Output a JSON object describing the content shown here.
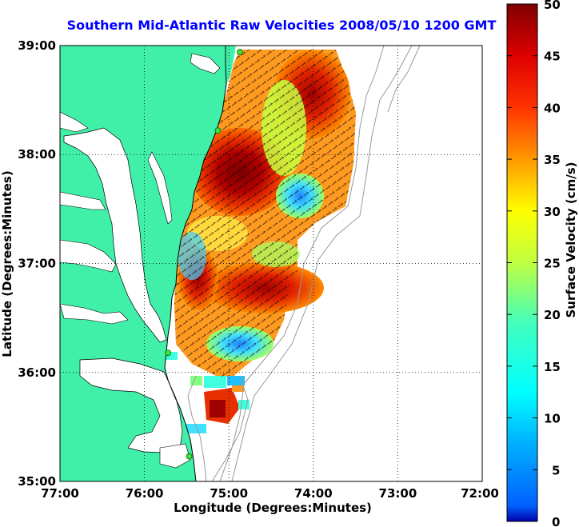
{
  "title": "Southern Mid-Atlantic Raw Velocities 2008/05/10 1200 GMT",
  "x_axis": {
    "label": "Longitude (Degrees:Minutes)",
    "ticks": [
      "77:00",
      "76:00",
      "75:00",
      "74:00",
      "73:00",
      "72:00"
    ],
    "range": [
      -77,
      -72
    ]
  },
  "y_axis": {
    "label": "Latitude (Degrees:Minutes)",
    "ticks": [
      "39:00",
      "38:00",
      "37:00",
      "36:00",
      "35:00"
    ],
    "range": [
      35,
      39
    ]
  },
  "colorbar": {
    "label": "Surface Velocity (cm/s)",
    "ticks": [
      "50",
      "45",
      "40",
      "35",
      "30",
      "25",
      "20",
      "15",
      "10",
      "5",
      "0"
    ],
    "range": [
      0,
      50
    ],
    "colormap": "jet"
  },
  "colors": {
    "land": "#40f0a8",
    "coastline": "#000000",
    "bathymetry": "#999999",
    "title": "#0000ff",
    "station_marker": "#40e040"
  },
  "grid": "dotted",
  "stations": [
    {
      "lon": -74.87,
      "lat": 38.94
    },
    {
      "lon": -75.13,
      "lat": 38.22
    },
    {
      "lon": -75.72,
      "lat": 36.18
    },
    {
      "lon": -75.47,
      "lat": 35.23
    }
  ]
}
